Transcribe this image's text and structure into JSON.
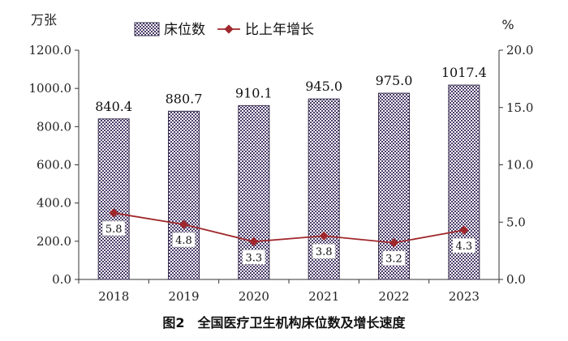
{
  "chart_data": {
    "type": "bar",
    "categories": [
      "2018",
      "2019",
      "2020",
      "2021",
      "2022",
      "2023"
    ],
    "series": [
      {
        "name": "床位数",
        "type": "bar",
        "axis": "left",
        "values": [
          840.4,
          880.7,
          910.1,
          945.0,
          975.0,
          1017.4
        ],
        "labels": [
          "840.4",
          "880.7",
          "910.1",
          "945.0",
          "975.0",
          "1017.4"
        ]
      },
      {
        "name": "比上年增长",
        "type": "line",
        "axis": "right",
        "values": [
          5.8,
          4.8,
          3.3,
          3.8,
          3.2,
          4.3
        ],
        "labels": [
          "5.8",
          "4.8",
          "3.3",
          "3.8",
          "3.2",
          "4.3"
        ]
      }
    ],
    "title": "图2　全国医疗卫生机构床位数及增长速度",
    "ylabel_left": "万张",
    "ylabel_right": "%",
    "ylim_left": [
      0,
      1200
    ],
    "ylim_right": [
      0,
      20
    ],
    "yticks_left": [
      "0.0",
      "200.0",
      "400.0",
      "600.0",
      "800.0",
      "1000.0",
      "1200.0"
    ],
    "yticks_right": [
      "0.0",
      "5.0",
      "10.0",
      "15.0",
      "20.0"
    ],
    "legend_position": "top",
    "grid": false,
    "colors": {
      "bar_pattern": "#4a3d6b",
      "bar_background": "#ffffff",
      "line": "#a0282c",
      "axis": "#333333"
    }
  }
}
